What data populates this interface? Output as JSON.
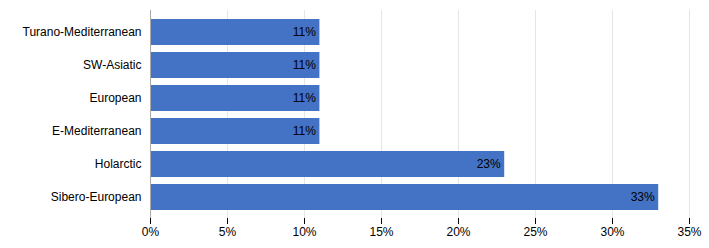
{
  "chart_data": {
    "type": "bar",
    "orientation": "horizontal",
    "categories": [
      "Sibero-European",
      "Holarctic",
      "E-Mediterranean",
      "European",
      "SW-Asiatic",
      "Turano-Mediterranean"
    ],
    "values": [
      33,
      23,
      11,
      11,
      11,
      11
    ],
    "value_labels": [
      "33%",
      "23%",
      "11%",
      "11%",
      "11%",
      "11%"
    ],
    "data_labels": true,
    "color": "#4472C4",
    "xlim": [
      0,
      35
    ],
    "xticks": [
      {
        "value": 0,
        "label": "0%"
      },
      {
        "value": 5,
        "label": "5%"
      },
      {
        "value": 10,
        "label": "10%"
      },
      {
        "value": 15,
        "label": "15%"
      },
      {
        "value": 20,
        "label": "20%"
      },
      {
        "value": 25,
        "label": "25%"
      },
      {
        "value": 30,
        "label": "30%"
      },
      {
        "value": 35,
        "label": "35%"
      }
    ],
    "grid": true
  }
}
